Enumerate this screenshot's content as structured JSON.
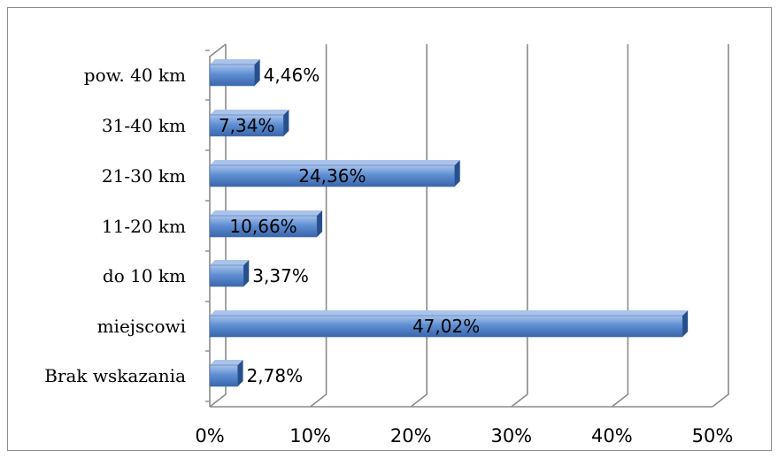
{
  "chart_data": {
    "type": "bar",
    "orientation": "horizontal",
    "categories": [
      "pow. 40 km",
      "31-40 km",
      "21-30 km",
      "11-20 km",
      "do 10 km",
      "miejscowi",
      "Brak wskazania"
    ],
    "values": [
      4.46,
      7.34,
      24.36,
      10.66,
      3.37,
      47.02,
      2.78
    ],
    "data_labels": [
      "4,46%",
      "7,34%",
      "24,36%",
      "10,66%",
      "3,37%",
      "47,02%",
      "2,78%"
    ],
    "xlim": [
      0,
      50
    ],
    "x_ticks": [
      0,
      10,
      20,
      30,
      40,
      50
    ],
    "x_tick_labels": [
      "0%",
      "10%",
      "20%",
      "30%",
      "40%",
      "50%"
    ],
    "grid": "vertical",
    "style": "3d",
    "colors": {
      "bar_light": "#a9c3ea",
      "bar_mid": "#5f8fd3",
      "bar_dark": "#3a66aa",
      "bar_side": "#274f8c",
      "grid": "#8a8a8a"
    }
  }
}
